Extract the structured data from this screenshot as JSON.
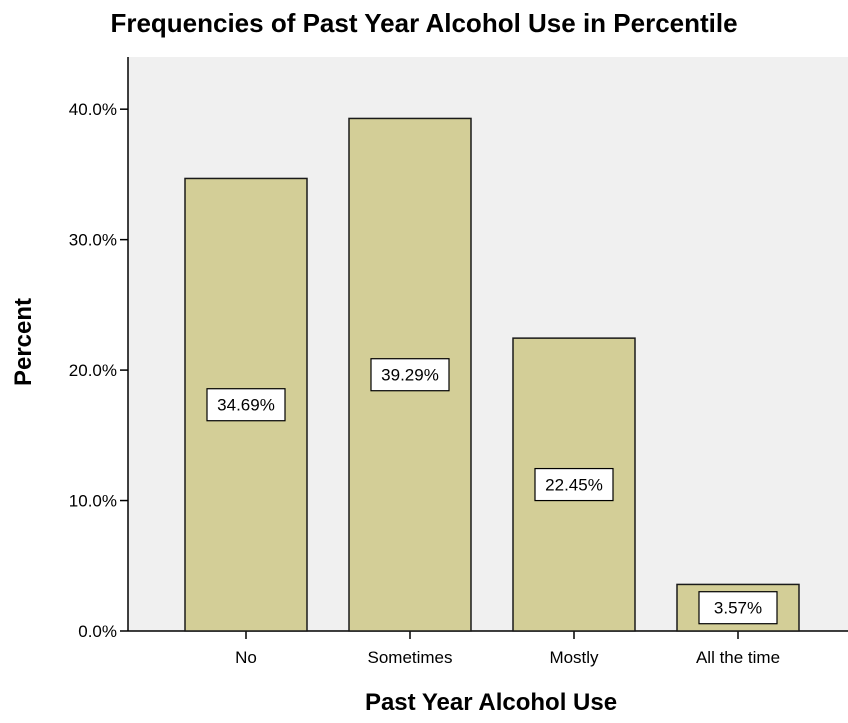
{
  "chart_data": {
    "type": "bar",
    "title": "Frequencies of Past Year Alcohol Use in Percentile",
    "xlabel": "Past Year Alcohol Use",
    "ylabel": "Percent",
    "categories": [
      "No",
      "Sometimes",
      "Mostly",
      "All the time"
    ],
    "values": [
      34.69,
      39.29,
      22.45,
      3.57
    ],
    "data_labels": [
      "34.69%",
      "39.29%",
      "22.45%",
      "3.57%"
    ],
    "yticks": [
      0,
      10,
      20,
      30,
      40
    ],
    "ytick_labels": [
      "0.0%",
      "10.0%",
      "20.0%",
      "30.0%",
      "40.0%"
    ],
    "ylim": [
      0,
      44
    ],
    "grid": false,
    "legend": "none",
    "colors": {
      "bar_fill": "#D3CE97",
      "bar_stroke": "#1a1a1a",
      "plot_background": "#F0F0F0",
      "page_background": "#FFFFFF",
      "label_box_fill": "#FFFFFF"
    }
  }
}
